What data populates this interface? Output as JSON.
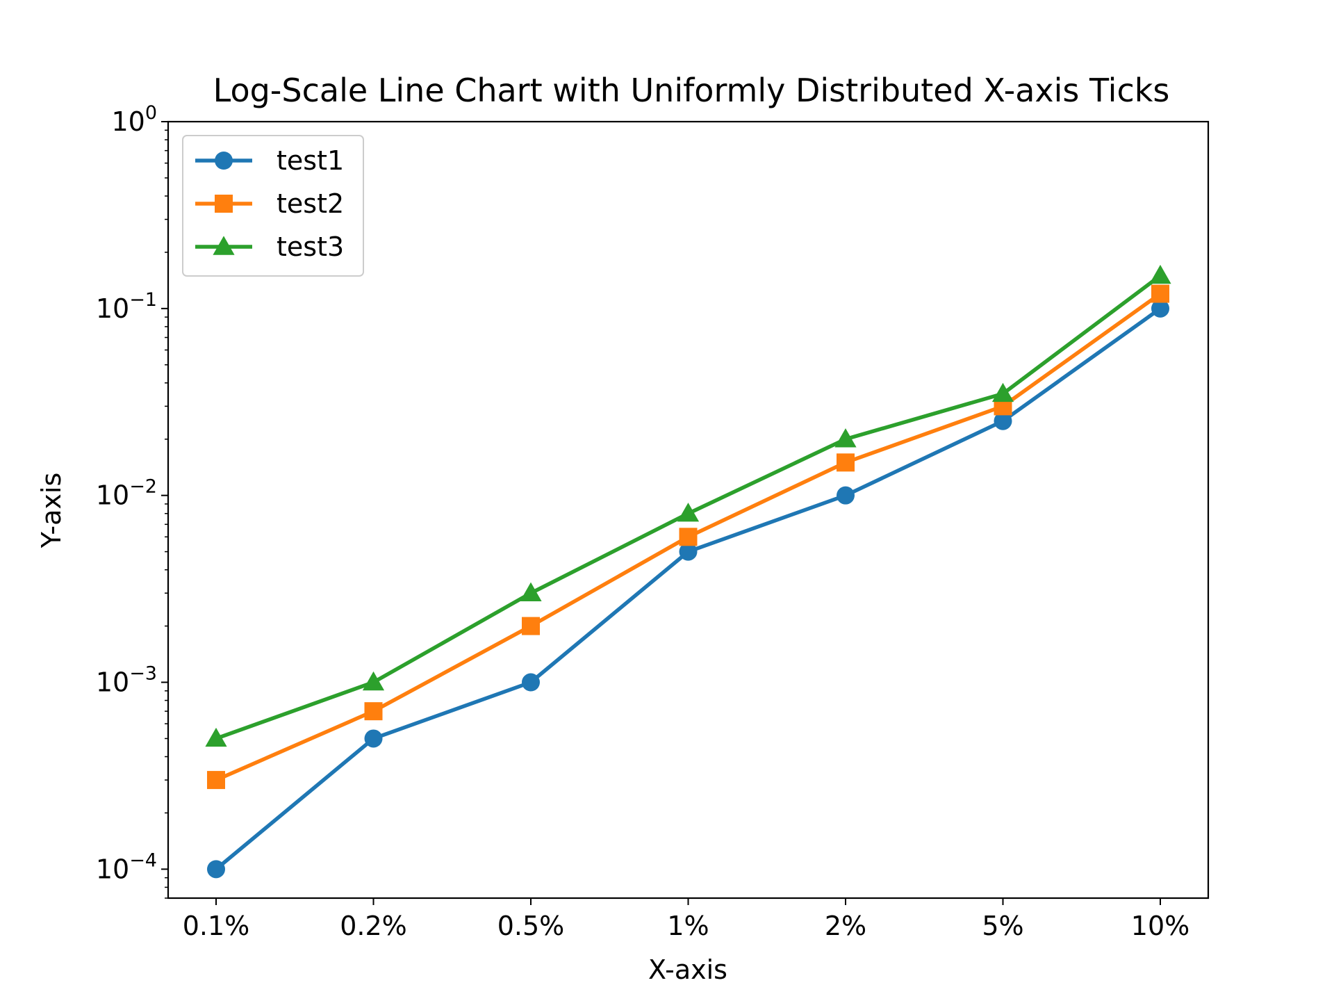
{
  "chart_data": {
    "type": "line",
    "title": "Log-Scale Line Chart with Uniformly Distributed X-axis Ticks",
    "xlabel": "X-axis",
    "ylabel": "Y-axis",
    "yscale": "log",
    "ylim": [
      7e-05,
      1
    ],
    "categories": [
      "0.1%",
      "0.2%",
      "0.5%",
      "1%",
      "2%",
      "5%",
      "10%"
    ],
    "y_tick_values": [
      0.0001,
      0.001,
      0.01,
      0.1,
      1
    ],
    "y_tick_labels": [
      {
        "base": "10",
        "exp": "−4"
      },
      {
        "base": "10",
        "exp": "−3"
      },
      {
        "base": "10",
        "exp": "−2"
      },
      {
        "base": "10",
        "exp": "−1"
      },
      {
        "base": "10",
        "exp": "0"
      }
    ],
    "legend_position": "top-left",
    "grid": false,
    "series": [
      {
        "name": "test1",
        "color": "#1f77b4",
        "marker": "circle",
        "values": [
          0.0001,
          0.0005,
          0.001,
          0.005,
          0.01,
          0.025,
          0.1
        ]
      },
      {
        "name": "test2",
        "color": "#ff7f0e",
        "marker": "square",
        "values": [
          0.0003,
          0.0007,
          0.002,
          0.006,
          0.015,
          0.03,
          0.12
        ]
      },
      {
        "name": "test3",
        "color": "#2ca02c",
        "marker": "triangle",
        "values": [
          0.0005,
          0.001,
          0.003,
          0.008,
          0.02,
          0.035,
          0.15
        ]
      }
    ]
  }
}
